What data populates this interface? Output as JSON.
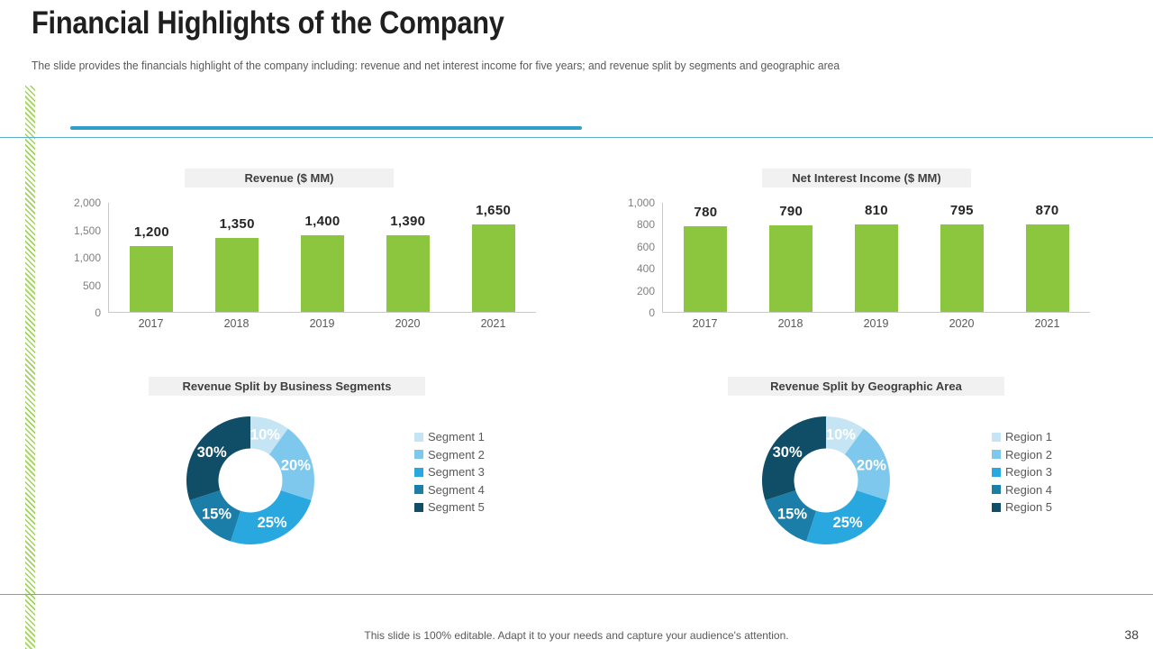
{
  "slide": {
    "title": "Financial Highlights of the Company",
    "subtitle": "The slide provides the financials highlight of the company including: revenue and net interest income for five years; and revenue split by segments and geographic area",
    "footer_note": "This slide is 100% editable. Adapt it to your needs and capture your audience's attention.",
    "page_number": "38"
  },
  "colors": {
    "bar_green": "#8cc63f",
    "accent_teal": "#2e9fc6",
    "divider_teal": "#59afc9",
    "stripe_green": "#9fd35c",
    "title_strip_bg": "#f1f1f1",
    "axis_gray": "#c9c9c9",
    "label_gray": "#595959",
    "donut_palette": [
      "#c5e5f4",
      "#7fc8ed",
      "#29a8df",
      "#1b7ea8",
      "#104e68"
    ]
  },
  "chart_data": [
    {
      "type": "bar",
      "title": "Revenue ($ MM)",
      "categories": [
        "2017",
        "2018",
        "2019",
        "2020",
        "2021"
      ],
      "values": [
        1200,
        1350,
        1400,
        1390,
        1650
      ],
      "data_labels": [
        "1,200",
        "1,350",
        "1,400",
        "1,390",
        "1,650"
      ],
      "ylim": [
        0,
        2000
      ],
      "ytick_labels": [
        "2,000",
        "1,500",
        "1,000",
        "500",
        "0"
      ],
      "grid": false,
      "data_labels_position": "above"
    },
    {
      "type": "bar",
      "title": "Net Interest Income ($ MM)",
      "categories": [
        "2017",
        "2018",
        "2019",
        "2020",
        "2021"
      ],
      "values": [
        780,
        790,
        810,
        795,
        870
      ],
      "data_labels": [
        "780",
        "790",
        "810",
        "795",
        "870"
      ],
      "ylim": [
        0,
        1000
      ],
      "ytick_labels": [
        "1,000",
        "800",
        "600",
        "400",
        "200",
        "0"
      ],
      "grid": false,
      "data_labels_position": "above"
    },
    {
      "type": "donut",
      "title": "Revenue Split by Business Segments",
      "labels": [
        "Segment 1",
        "Segment 2",
        "Segment 3",
        "Segment 4",
        "Segment 5"
      ],
      "values": [
        10,
        20,
        25,
        15,
        30
      ],
      "slice_labels": [
        "10%",
        "20%",
        "25%",
        "15%",
        "30%"
      ],
      "start_angle_deg": 0,
      "direction": "clockwise",
      "legend_position": "right"
    },
    {
      "type": "donut",
      "title": "Revenue Split by Geographic Area",
      "labels": [
        "Region 1",
        "Region 2",
        "Region 3",
        "Region 4",
        "Region 5"
      ],
      "values": [
        10,
        20,
        25,
        15,
        30
      ],
      "slice_labels": [
        "10%",
        "20%",
        "25%",
        "15%",
        "30%"
      ],
      "start_angle_deg": 0,
      "direction": "clockwise",
      "legend_position": "right"
    }
  ]
}
